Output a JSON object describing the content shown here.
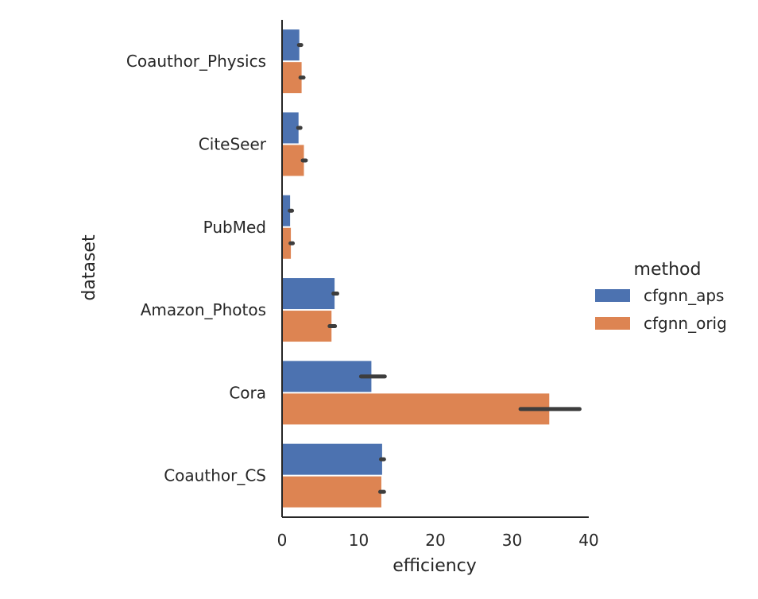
{
  "chart_data": {
    "type": "bar",
    "orientation": "horizontal",
    "xlabel": "efficiency",
    "ylabel": "dataset",
    "xlim": [
      0,
      40
    ],
    "xticks": [
      "0",
      "10",
      "20",
      "30",
      "40"
    ],
    "categories": [
      "Coauthor_Physics",
      "CiteSeer",
      "PubMed",
      "Amazon_Photos",
      "Cora",
      "Coauthor_CS"
    ],
    "series": [
      {
        "name": "cfgnn_aps",
        "color": "#4c72b0",
        "values": [
          2.3,
          2.2,
          1.1,
          6.9,
          11.7,
          13.1
        ],
        "ci": [
          [
            2.2,
            2.5
          ],
          [
            2.1,
            2.4
          ],
          [
            1.0,
            1.3
          ],
          [
            6.7,
            7.2
          ],
          [
            10.3,
            13.4
          ],
          [
            12.9,
            13.3
          ]
        ]
      },
      {
        "name": "cfgnn_orig",
        "color": "#dd8452",
        "values": [
          2.6,
          2.9,
          1.2,
          6.5,
          34.9,
          13.0
        ],
        "ci": [
          [
            2.4,
            2.8
          ],
          [
            2.7,
            3.1
          ],
          [
            1.1,
            1.4
          ],
          [
            6.2,
            6.9
          ],
          [
            31.1,
            38.8
          ],
          [
            12.8,
            13.3
          ]
        ]
      }
    ],
    "legend": {
      "title": "method",
      "placement": "right"
    },
    "grid": false
  }
}
